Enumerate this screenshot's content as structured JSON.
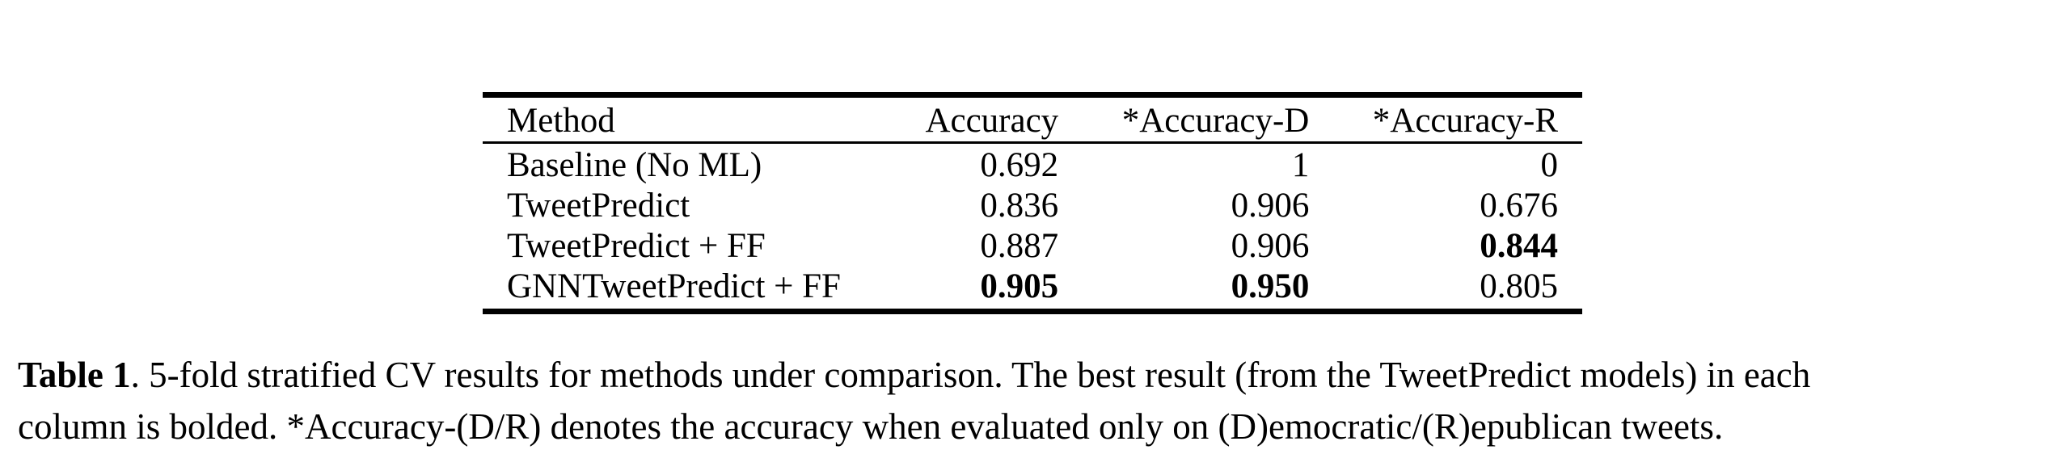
{
  "table": {
    "columns": [
      "Method",
      "Accuracy",
      "*Accuracy-D",
      "*Accuracy-R"
    ],
    "rows": [
      {
        "method": "Baseline (No ML)",
        "accuracy": "0.692",
        "accuracy_d": "1",
        "accuracy_r": "0",
        "bold": []
      },
      {
        "method": "TweetPredict",
        "accuracy": "0.836",
        "accuracy_d": "0.906",
        "accuracy_r": "0.676",
        "bold": []
      },
      {
        "method": "TweetPredict + FF",
        "accuracy": "0.887",
        "accuracy_d": "0.906",
        "accuracy_r": "0.844",
        "bold": [
          "accuracy_r"
        ]
      },
      {
        "method": "GNNTweetPredict + FF",
        "accuracy": "0.905",
        "accuracy_d": "0.950",
        "accuracy_r": "0.805",
        "bold": [
          "accuracy",
          "accuracy_d"
        ]
      }
    ]
  },
  "caption": {
    "label": "Table 1",
    "text_line1": ". 5-fold stratified CV results for methods under comparison.  The best result (from the TweetPredict models) in each",
    "text_line2": "column is bolded. *Accuracy-(D/R) denotes the accuracy when evaluated only on (D)emocratic/(R)epublican tweets."
  }
}
